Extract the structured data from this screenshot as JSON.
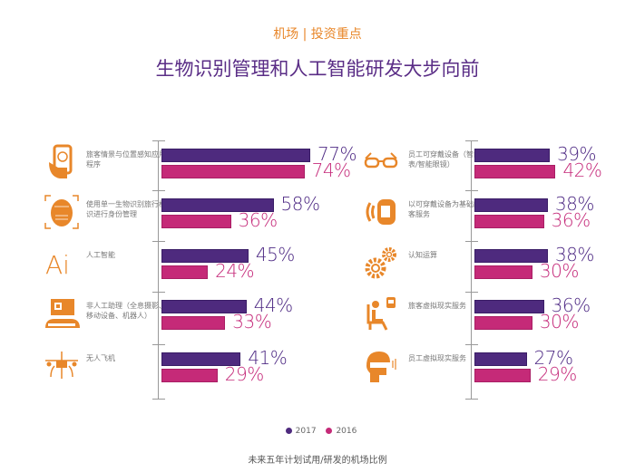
{
  "header": {
    "kicker": "机场 | 投资重点",
    "title": "生物识别管理和人工智能研发大步向前"
  },
  "colors": {
    "y2017": "#4e2a7e",
    "y2016": "#c52a78",
    "icon": "#e8872a"
  },
  "chart_data": {
    "type": "bar",
    "orientation": "horizontal",
    "title": "生物识别管理和人工智能研发大步向前",
    "xlabel": "未来五年计划试用/研发的机场比例",
    "unit": "%",
    "xlim": [
      0,
      100
    ],
    "legend": {
      "position": "bottom-center",
      "entries": [
        "2017",
        "2016"
      ]
    },
    "series_names": [
      "2017",
      "2016"
    ],
    "panels": [
      {
        "side": "left",
        "categories": [
          {
            "label": "旅客情景与位置感知应用程序",
            "icon": "smartphone-icon",
            "values": [
              77,
              74
            ]
          },
          {
            "label": "使用单一生物识别旅行标识进行身份管理",
            "icon": "face-scan-icon",
            "values": [
              58,
              36
            ]
          },
          {
            "label": "人工智能",
            "icon": "ai-icon",
            "values": [
              45,
              24
            ]
          },
          {
            "label": "非人工助理（全息摄影、移动设备、机器人）",
            "icon": "kiosk-icon",
            "values": [
              44,
              33
            ]
          },
          {
            "label": "无人飞机",
            "icon": "drone-icon",
            "values": [
              41,
              29
            ]
          }
        ]
      },
      {
        "side": "right",
        "categories": [
          {
            "label": "员工可穿戴设备（智能手表/智能眼镜）",
            "icon": "glasses-icon",
            "values": [
              39,
              42
            ]
          },
          {
            "label": "以可穿戴设备为基础的旅客服务",
            "icon": "smartwatch-icon",
            "values": [
              38,
              36
            ]
          },
          {
            "label": "认知运算",
            "icon": "gears-icon",
            "values": [
              38,
              30
            ]
          },
          {
            "label": "旅客虚拟现实服务",
            "icon": "seated-vr-icon",
            "values": [
              36,
              30
            ]
          },
          {
            "label": "员工虚拟现实服务",
            "icon": "vr-headset-icon",
            "values": [
              27,
              29
            ]
          }
        ]
      }
    ]
  },
  "legend": {
    "y2017": "2017",
    "y2016": "2016"
  },
  "footer": "未来五年计划试用/研发的机场比例"
}
